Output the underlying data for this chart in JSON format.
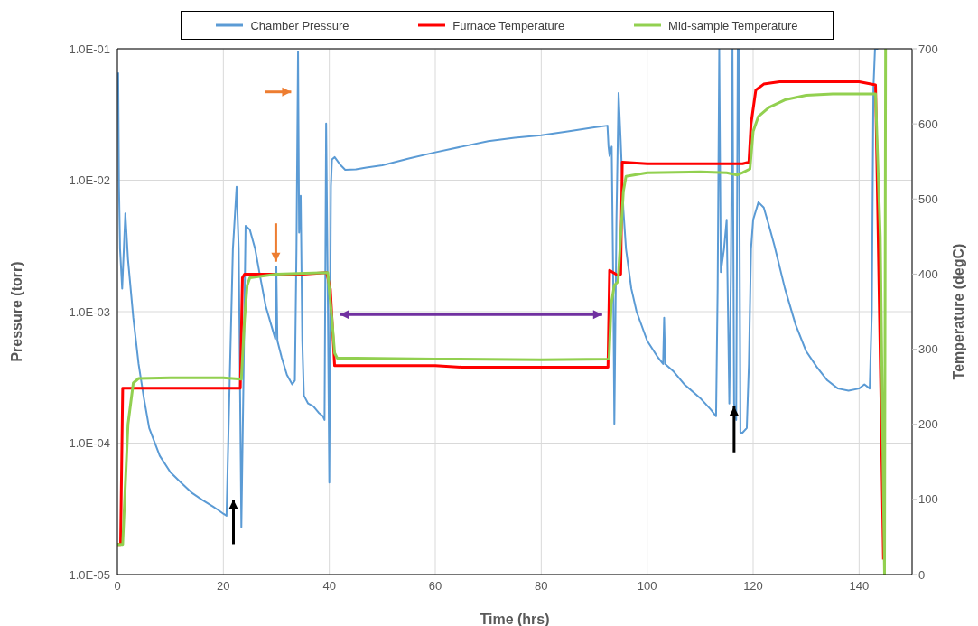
{
  "chart_data": {
    "type": "line",
    "xlabel": "Time (hrs)",
    "ylabel": "Pressure (torr)",
    "y2label": "Temperature (degC)",
    "legend": "top",
    "grid": true,
    "marker": "none",
    "line_style": "solid",
    "log": "y",
    "xlim": [
      0,
      150
    ],
    "xticks": [
      0,
      20,
      40,
      60,
      80,
      100,
      120,
      140
    ],
    "ylim": [
      1e-05,
      0.1
    ],
    "yticks": [
      {
        "value": 1e-05,
        "label": "1.0E-05"
      },
      {
        "value": 0.0001,
        "label": "1.0E-04"
      },
      {
        "value": 0.001,
        "label": "1.0E-03"
      },
      {
        "value": 0.01,
        "label": "1.0E-02"
      },
      {
        "value": 0.1,
        "label": "1.0E-01"
      }
    ],
    "y2lim": [
      0,
      700
    ],
    "y2ticks": [
      0,
      100,
      200,
      300,
      400,
      500,
      600,
      700
    ],
    "series": [
      {
        "name": "Chamber Pressure",
        "color": "#5b9bd5",
        "x": [
          0.15,
          0.3,
          0.5,
          0.9,
          1.5,
          2,
          3,
          4,
          5,
          6,
          8,
          10,
          12,
          14,
          16,
          18,
          19,
          20,
          20.6,
          21.2,
          21.8,
          22.5,
          22.9,
          23.4,
          23.8,
          24.2,
          25,
          26,
          27,
          28,
          29,
          29.8,
          30,
          30.2,
          31,
          32,
          33,
          33.5,
          33.8,
          34.1,
          34.3,
          34.6,
          34.9,
          35.2,
          36,
          37,
          38,
          38.8,
          39.1,
          39.4,
          39.7,
          40,
          40.3,
          40.5,
          41,
          42,
          43,
          45,
          47,
          50,
          55,
          60,
          65,
          70,
          75,
          80,
          85,
          90,
          92.5,
          92.7,
          92.9,
          93.3,
          93.6,
          93.8,
          94.2,
          94.6,
          95,
          95.5,
          96,
          97,
          98,
          100,
          102,
          103,
          103.2,
          103.4,
          105,
          107,
          110,
          112,
          113,
          113.3,
          113.6,
          113.9,
          114.5,
          115,
          115.5,
          115.8,
          116.1,
          116.4,
          116.8,
          117.1,
          117.3,
          117.6,
          118,
          118.8,
          119.2,
          119.6,
          120,
          121,
          122,
          123,
          124,
          126,
          128,
          130,
          132,
          134,
          136,
          138,
          140,
          141,
          142,
          142.4,
          142.7,
          143,
          143.6
        ],
        "values": [
          0.066,
          0.009,
          0.003,
          0.0015,
          0.0056,
          0.0025,
          0.0009,
          0.0004,
          0.00022,
          0.00013,
          8e-05,
          6e-05,
          5e-05,
          4.2e-05,
          3.7e-05,
          3.3e-05,
          3.1e-05,
          2.9e-05,
          2.8e-05,
          0.0003,
          0.003,
          0.0089,
          0.003,
          2.3e-05,
          0.0003,
          0.0045,
          0.0042,
          0.003,
          0.0018,
          0.0011,
          0.0008,
          0.00062,
          0.0022,
          0.0006,
          0.00045,
          0.00033,
          0.00028,
          0.0003,
          0.003,
          0.095,
          0.004,
          0.0076,
          0.0006,
          0.00023,
          0.0002,
          0.00019,
          0.00017,
          0.00016,
          0.00015,
          0.027,
          0.0015,
          5e-05,
          0.009,
          0.0144,
          0.015,
          0.0132,
          0.012,
          0.0121,
          0.0125,
          0.013,
          0.0146,
          0.0163,
          0.018,
          0.0198,
          0.021,
          0.022,
          0.0235,
          0.0252,
          0.026,
          0.018,
          0.0153,
          0.018,
          0.0015,
          0.00014,
          0.005,
          0.046,
          0.02,
          0.006,
          0.003,
          0.0015,
          0.001,
          0.0006,
          0.00045,
          0.0004,
          0.0009,
          0.0004,
          0.00035,
          0.00028,
          0.00022,
          0.00018,
          0.00016,
          0.0015,
          0.1,
          0.002,
          0.003,
          0.005,
          0.0002,
          0.002,
          0.1,
          0.0002,
          0.00015,
          0.1,
          0.1,
          0.00012,
          0.00012,
          0.00013,
          0.0004,
          0.003,
          0.005,
          0.0068,
          0.0062,
          0.0045,
          0.0032,
          0.0015,
          0.0008,
          0.0005,
          0.00038,
          0.0003,
          0.00026,
          0.00025,
          0.00026,
          0.00028,
          0.00026,
          0.001,
          0.05,
          0.1,
          0.1
        ]
      },
      {
        "name": "Furnace Temperature",
        "color": "#ff0000",
        "axis": "y2",
        "x": [
          0,
          0.6,
          1,
          5,
          10,
          15,
          20,
          23.2,
          23.6,
          24,
          30,
          35,
          39.5,
          40.2,
          41,
          42,
          50,
          60,
          65,
          70,
          80,
          92.6,
          92.9,
          94.5,
          95,
          95.3,
          100,
          110,
          118,
          119.2,
          119.6,
          120.5,
          122,
          125,
          130,
          140,
          143.1,
          143.6,
          144.2,
          144.6
        ],
        "values": [
          40,
          40,
          248,
          248,
          248,
          248,
          248,
          248,
          395,
          400,
          400,
          400,
          402,
          380,
          278,
          278,
          278,
          278,
          276,
          276,
          276,
          276,
          405,
          398,
          400,
          549,
          547,
          547,
          547,
          549,
          600,
          645,
          653,
          656,
          656,
          656,
          652,
          450,
          200,
          20
        ]
      },
      {
        "name": "Mid-sample Temperature",
        "color": "#92d050",
        "axis": "y2",
        "x": [
          0,
          1,
          2,
          3,
          4,
          10,
          20,
          23.4,
          24,
          24.5,
          25,
          30,
          39.7,
          40.5,
          41,
          41.5,
          45,
          60,
          80,
          92.8,
          93.2,
          93.8,
          94.5,
          95,
          95.5,
          96,
          100,
          110,
          115,
          117,
          118,
          119.4,
          120,
          121,
          123,
          126,
          130,
          135,
          140,
          143.1,
          144,
          144.6,
          144.8,
          145
        ],
        "values": [
          40,
          40,
          200,
          255,
          261,
          262,
          262,
          260,
          340,
          385,
          395,
          400,
          402,
          340,
          295,
          288,
          288,
          287,
          286,
          287,
          360,
          385,
          390,
          450,
          510,
          530,
          535,
          536,
          535,
          532,
          535,
          540,
          590,
          610,
          622,
          632,
          638,
          640,
          640,
          640,
          450,
          100,
          0,
          700
        ]
      }
    ]
  }
}
